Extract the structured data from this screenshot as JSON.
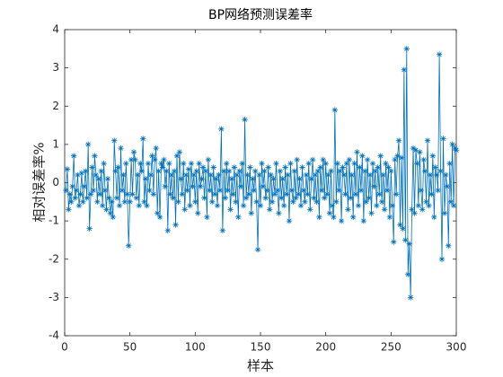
{
  "chart_data": {
    "type": "line",
    "title": "BP网络预测误差率",
    "x_label": "样本",
    "y_label": "相对误差率%",
    "x": [
      1,
      2,
      3,
      4,
      5,
      6,
      7,
      8,
      9,
      10,
      11,
      12,
      13,
      14,
      15,
      16,
      17,
      18,
      19,
      20,
      21,
      22,
      23,
      24,
      25,
      26,
      27,
      28,
      29,
      30,
      31,
      32,
      33,
      34,
      35,
      36,
      37,
      38,
      39,
      40,
      41,
      42,
      43,
      44,
      45,
      46,
      47,
      48,
      49,
      50,
      51,
      52,
      53,
      54,
      55,
      56,
      57,
      58,
      59,
      60,
      61,
      62,
      63,
      64,
      65,
      66,
      67,
      68,
      69,
      70,
      71,
      72,
      73,
      74,
      75,
      76,
      77,
      78,
      79,
      80,
      81,
      82,
      83,
      84,
      85,
      86,
      87,
      88,
      89,
      90,
      91,
      92,
      93,
      94,
      95,
      96,
      97,
      98,
      99,
      100,
      101,
      102,
      103,
      104,
      105,
      106,
      107,
      108,
      109,
      110,
      111,
      112,
      113,
      114,
      115,
      116,
      117,
      118,
      119,
      120,
      121,
      122,
      123,
      124,
      125,
      126,
      127,
      128,
      129,
      130,
      131,
      132,
      133,
      134,
      135,
      136,
      137,
      138,
      139,
      140,
      141,
      142,
      143,
      144,
      145,
      146,
      147,
      148,
      149,
      150,
      151,
      152,
      153,
      154,
      155,
      156,
      157,
      158,
      159,
      160,
      161,
      162,
      163,
      164,
      165,
      166,
      167,
      168,
      169,
      170,
      171,
      172,
      173,
      174,
      175,
      176,
      177,
      178,
      179,
      180,
      181,
      182,
      183,
      184,
      185,
      186,
      187,
      188,
      189,
      190,
      191,
      192,
      193,
      194,
      195,
      196,
      197,
      198,
      199,
      200,
      201,
      202,
      203,
      204,
      205,
      206,
      207,
      208,
      209,
      210,
      211,
      212,
      213,
      214,
      215,
      216,
      217,
      218,
      219,
      220,
      221,
      222,
      223,
      224,
      225,
      226,
      227,
      228,
      229,
      230,
      231,
      232,
      233,
      234,
      235,
      236,
      237,
      238,
      239,
      240,
      241,
      242,
      243,
      244,
      245,
      246,
      247,
      248,
      249,
      250,
      251,
      252,
      253,
      254,
      255,
      256,
      257,
      258,
      259,
      260,
      261,
      262,
      263,
      264,
      265,
      266,
      267,
      268,
      269,
      270,
      271,
      272,
      273,
      274,
      275,
      276,
      277,
      278,
      279,
      280,
      281,
      282,
      283,
      284,
      285,
      286,
      287,
      288,
      289,
      290,
      291,
      292,
      293,
      294,
      295,
      296,
      297,
      298,
      299,
      300
    ],
    "series": [
      {
        "color": "#0072bd",
        "values": [
          -0.2,
          0.35,
          -0.7,
          -0.3,
          -0.5,
          -0.1,
          0.7,
          -0.4,
          -0.2,
          0.2,
          -0.6,
          -0.3,
          0.25,
          -0.5,
          -0.1,
          0.3,
          -0.4,
          1.0,
          -1.2,
          -0.3,
          0.4,
          -0.2,
          0.7,
          0.2,
          -0.5,
          0.1,
          -0.3,
          0.3,
          -0.6,
          0.5,
          -0.2,
          -0.7,
          0.1,
          -0.4,
          -0.8,
          -0.5,
          -0.9,
          1.1,
          0.3,
          -0.4,
          0.4,
          -0.6,
          0.9,
          -0.2,
          0.2,
          -0.5,
          0.5,
          -0.3,
          -1.65,
          -0.5,
          0.6,
          -0.3,
          0.8,
          0.6,
          -0.4,
          0.2,
          -0.6,
          0.5,
          0.3,
          1.15,
          -0.5,
          0.1,
          -0.6,
          0.5,
          -0.2,
          0.2,
          0.7,
          -0.3,
          0.6,
          0.9,
          -0.8,
          0.3,
          -0.9,
          0.5,
          0.4,
          0.6,
          -0.1,
          0.3,
          -1.25,
          0.5,
          -0.3,
          0.2,
          -0.4,
          0.3,
          -1.1,
          0.7,
          -0.5,
          0.8,
          0.1,
          -0.3,
          0.5,
          -0.7,
          0.2,
          -0.2,
          0.35,
          -0.6,
          0.5,
          -0.1,
          0.2,
          -0.5,
          0.3,
          -0.8,
          0.5,
          -0.1,
          0.1,
          0.4,
          -0.4,
          0.3,
          -0.9,
          0.6,
          -0.2,
          0.2,
          -0.5,
          0.4,
          -0.3,
          0.1,
          -0.6,
          0.2,
          -0.2,
          1.4,
          -1.25,
          0.3,
          -0.4,
          0.5,
          -0.2,
          0.3,
          -0.7,
          0.1,
          -0.3,
          0.4,
          -0.5,
          0.2,
          -0.9,
          0.3,
          -0.1,
          0.5,
          -0.6,
          1.65,
          -0.4,
          0.2,
          -0.3,
          0.4,
          -0.8,
          0.1,
          -0.2,
          0.3,
          -0.5,
          -1.75,
          0.2,
          -0.6,
          0.5,
          -0.1,
          0.3,
          -0.4,
          -0.2,
          0.4,
          -0.7,
          0.2,
          -0.5,
          0.1,
          -0.3,
          0.5,
          -0.2,
          -0.8,
          0.3,
          -0.4,
          0.1,
          -0.6,
          0.4,
          -0.3,
          0.2,
          -1.0,
          0.5,
          -0.2,
          -0.5,
          0.3,
          -0.4,
          0.6,
          -0.3,
          0.1,
          -0.6,
          0.4,
          -0.2,
          -0.5,
          0.2,
          -0.3,
          0.5,
          -0.7,
          0.1,
          0.6,
          -0.4,
          0.2,
          -0.5,
          0.3,
          -0.9,
          0.4,
          -0.2,
          0.6,
          -0.4,
          0.5,
          -0.3,
          0.2,
          -0.8,
          0.3,
          -0.6,
          -0.9,
          1.9,
          -0.5,
          0.5,
          -0.2,
          0.3,
          -1.0,
          0.4,
          0.2,
          -0.3,
          0.5,
          -0.7,
          0.6,
          -0.4,
          0.2,
          -0.9,
          0.5,
          -0.3,
          0.8,
          -0.6,
          0.4,
          -0.2,
          0.7,
          -1.0,
          0.3,
          -0.5,
          0.6,
          -0.4,
          0.2,
          -0.8,
          0.5,
          -0.1,
          0.3,
          -0.6,
          0.4,
          -0.3,
          0.7,
          -0.5,
          0.2,
          -0.7,
          0.5,
          -0.2,
          0.4,
          -0.9,
          0.3,
          -0.6,
          -1.55,
          0.6,
          -0.3,
          0.7,
          1.1,
          -1.1,
          0.65,
          -1.2,
          2.95,
          -1.5,
          3.5,
          -2.4,
          -1.6,
          -3.0,
          -0.7,
          0.9,
          -0.8,
          0.85,
          0.5,
          -0.6,
          0.8,
          -0.2,
          -0.7,
          0.6,
          0.3,
          -0.5,
          1.1,
          -0.6,
          0.2,
          -0.3,
          0.7,
          -0.9,
          0.4,
          0.2,
          -0.2,
          3.35,
          0.3,
          -2.0,
          1.15,
          -0.8,
          0.2,
          -0.1,
          -1.65,
          0.5,
          -0.5,
          1.0,
          -0.6,
          0.9,
          0.85
        ]
      }
    ],
    "xlim": [
      0,
      300
    ],
    "xticks": [
      0,
      50,
      100,
      150,
      200,
      250,
      300
    ],
    "ylim": [
      -4,
      4
    ],
    "yticks": [
      -4,
      -3,
      -2,
      -1,
      0,
      1,
      2,
      3,
      4
    ],
    "marker": "*"
  }
}
